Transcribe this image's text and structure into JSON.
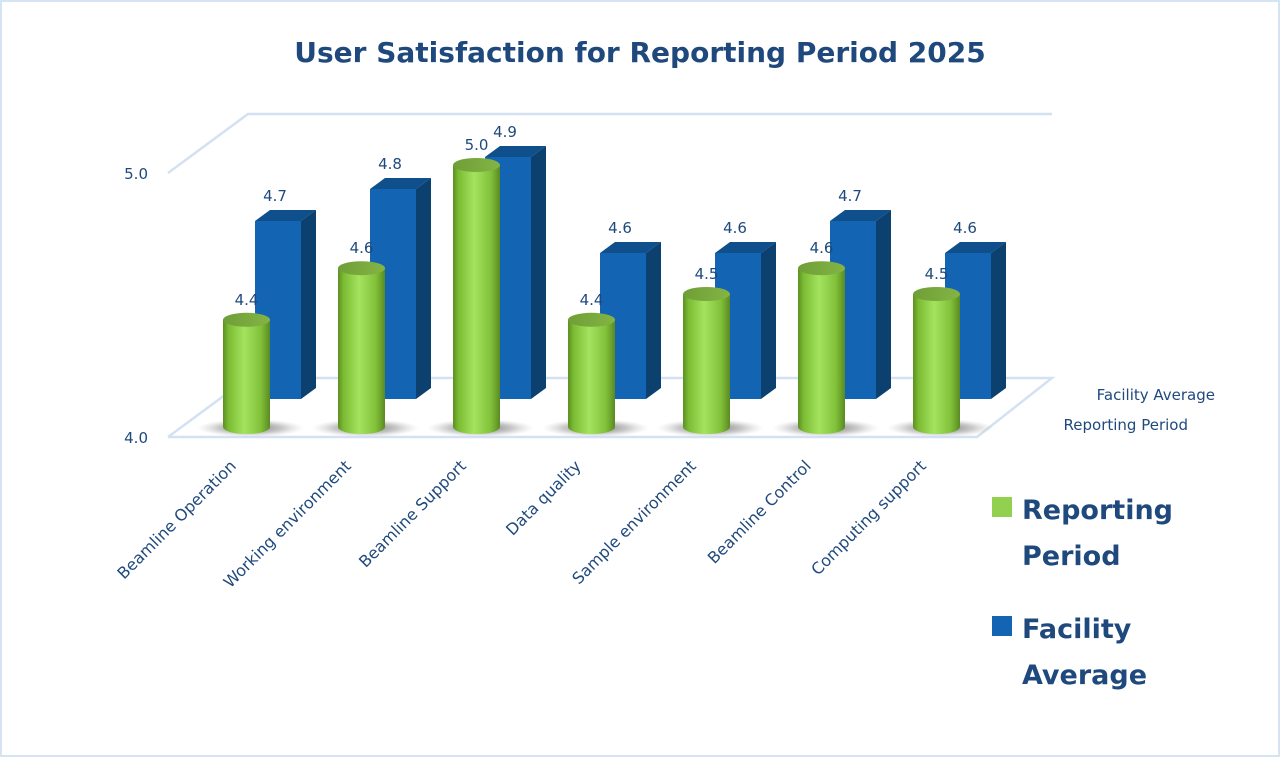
{
  "chart_data": {
    "type": "bar",
    "style": "3d-clustered",
    "title": "User Satisfaction for Reporting Period 2025",
    "xlabel": "",
    "ylabel": "",
    "ylim": [
      4.0,
      5.0
    ],
    "yticks": [
      "4.0",
      "5.0"
    ],
    "grid": false,
    "categories": [
      "Beamline Operation",
      "Working environment",
      "Beamline Support",
      "Data quality",
      "Sample environment",
      "Beamline Control",
      "Computing support"
    ],
    "series": [
      {
        "name": "Reporting Period",
        "shape": "cylinder",
        "color": "#92d050",
        "values": [
          4.4,
          4.6,
          5.0,
          4.4,
          4.5,
          4.6,
          4.5
        ],
        "labels": [
          "4.4",
          "4.6",
          "5.0",
          "4.4",
          "4.5",
          "4.6",
          "4.5"
        ]
      },
      {
        "name": "Facility Average",
        "shape": "box",
        "color": "#1464b4",
        "values": [
          4.7,
          4.8,
          4.9,
          4.6,
          4.6,
          4.7,
          4.6
        ],
        "labels": [
          "4.7",
          "4.8",
          "4.9",
          "4.6",
          "4.6",
          "4.7",
          "4.6"
        ]
      }
    ],
    "depth_axis_labels": [
      "Facility Average",
      "Reporting Period"
    ],
    "legend": {
      "position": "right",
      "entries": [
        {
          "lines": [
            "Reporting",
            "Period"
          ],
          "color": "#92d050"
        },
        {
          "lines": [
            "Facility",
            "Average"
          ],
          "color": "#1464b4"
        }
      ]
    }
  },
  "colors": {
    "text": "#1f497d",
    "wall_line": "#d3e1f2",
    "frame_border": "#d6e3f3"
  }
}
